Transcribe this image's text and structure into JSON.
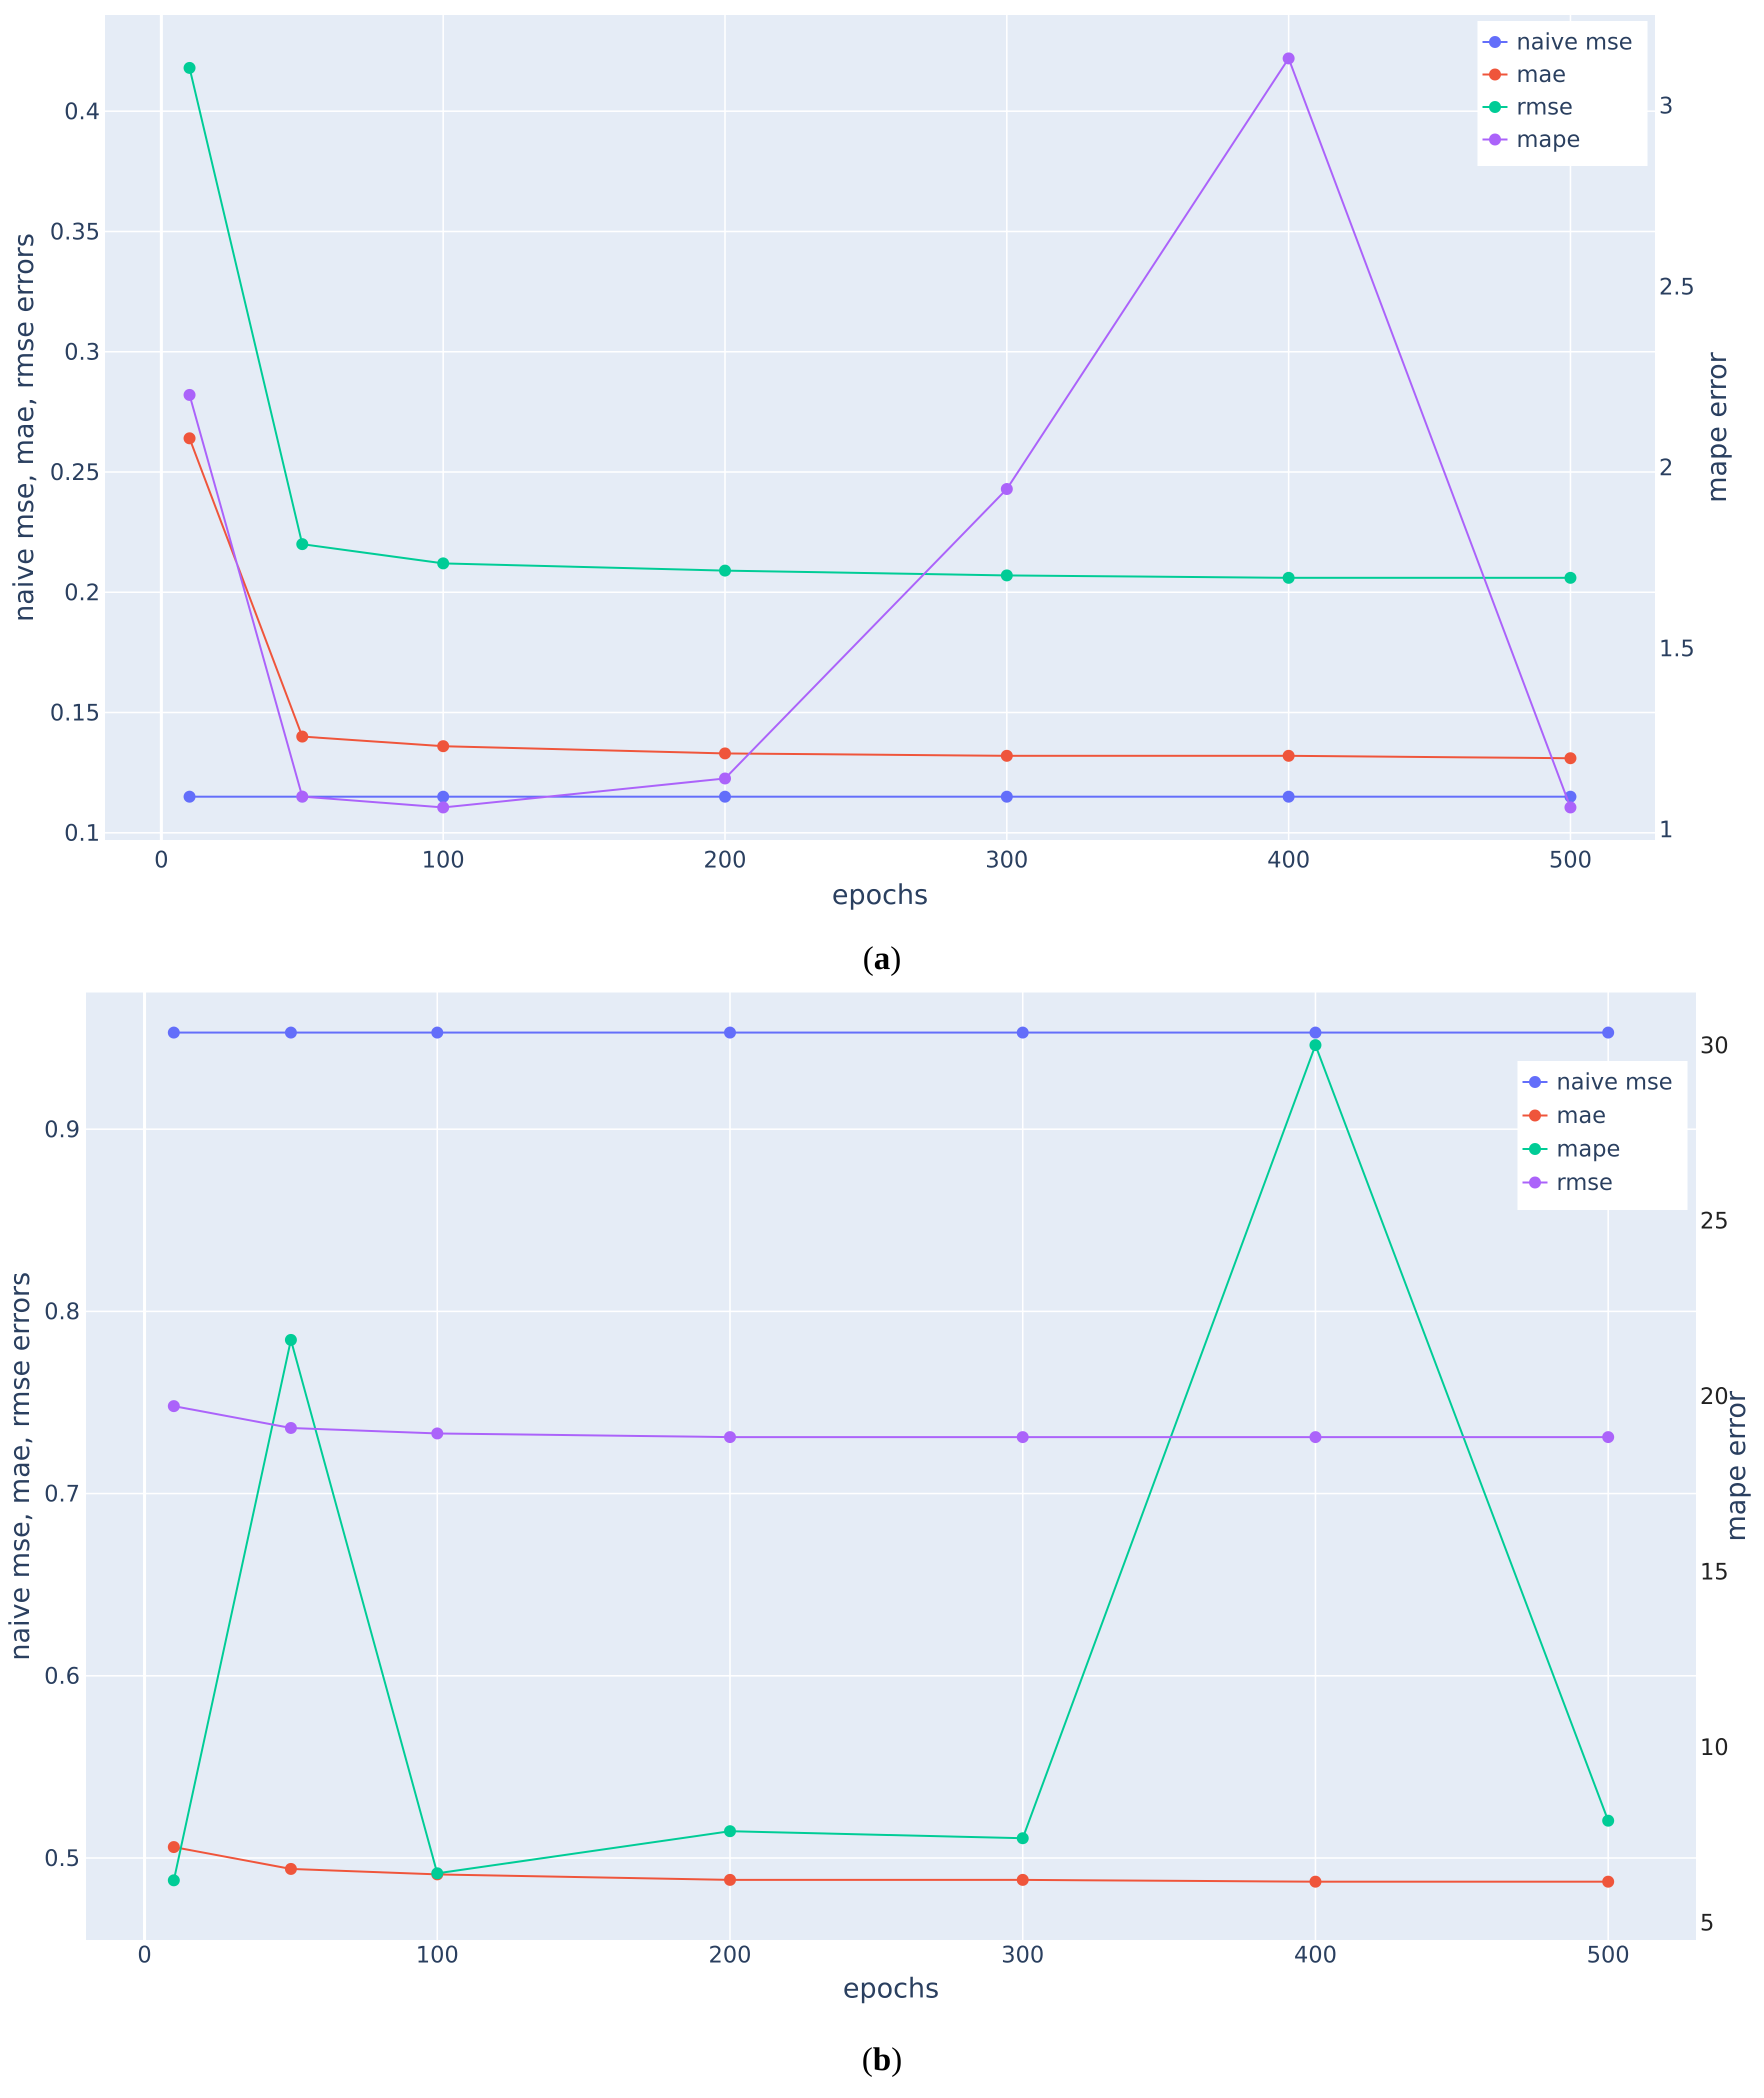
{
  "chart_data": [
    {
      "type": "line",
      "panel_label": "a",
      "xlabel": "epochs",
      "ylabel": "naive mse, mae, rmse errors",
      "y2label": "mape error",
      "x": [
        10,
        50,
        100,
        200,
        300,
        400,
        500
      ],
      "xlim": [
        -20,
        530
      ],
      "ylim": [
        0.097,
        0.44
      ],
      "y2lim": [
        0.97,
        3.25
      ],
      "xticks": [
        0,
        100,
        200,
        300,
        400,
        500
      ],
      "yticks": [
        0.1,
        0.15,
        0.2,
        0.25,
        0.3,
        0.35,
        0.4
      ],
      "ytick_labels": [
        "0.1",
        "0.15",
        "0.2",
        "0.25",
        "0.3",
        "0.35",
        "0.4"
      ],
      "y2ticks": [
        1,
        1.5,
        2,
        2.5,
        3
      ],
      "y2tick_labels": [
        "1",
        "1.5",
        "2",
        "2.5",
        "3"
      ],
      "legend_position": "top-right",
      "series": [
        {
          "name": "naive mse",
          "color": "#636efa",
          "axis": "left",
          "values": [
            0.115,
            0.115,
            0.115,
            0.115,
            0.115,
            0.115,
            0.115
          ]
        },
        {
          "name": "mae",
          "color": "#ef553b",
          "axis": "left",
          "values": [
            0.264,
            0.14,
            0.136,
            0.133,
            0.132,
            0.132,
            0.131
          ]
        },
        {
          "name": "rmse",
          "color": "#00cc96",
          "axis": "left",
          "values": [
            0.418,
            0.22,
            0.212,
            0.209,
            0.207,
            0.206,
            0.206
          ]
        },
        {
          "name": "mape",
          "color": "#ab63fa",
          "axis": "right",
          "values": [
            2.2,
            1.09,
            1.06,
            1.14,
            1.94,
            3.13,
            1.06
          ]
        }
      ]
    },
    {
      "type": "line",
      "panel_label": "b",
      "xlabel": "epochs",
      "ylabel": "naive mse, mae, rmse errors",
      "y2label": "mape error",
      "x": [
        10,
        50,
        100,
        200,
        300,
        400,
        500
      ],
      "xlim": [
        -20,
        530
      ],
      "ylim": [
        0.455,
        0.975
      ],
      "y2lim": [
        4.5,
        31.5
      ],
      "xticks": [
        0,
        100,
        200,
        300,
        400,
        500
      ],
      "yticks": [
        0.5,
        0.6,
        0.7,
        0.8,
        0.9
      ],
      "ytick_labels": [
        "0.5",
        "0.6",
        "0.7",
        "0.8",
        "0.9"
      ],
      "y2ticks": [
        5,
        10,
        15,
        20,
        25,
        30
      ],
      "y2tick_labels": [
        "5",
        "10",
        "15",
        "20",
        "25",
        "30"
      ],
      "legend_position": "top-right",
      "series": [
        {
          "name": "naive mse",
          "color": "#636efa",
          "axis": "left",
          "values": [
            0.953,
            0.953,
            0.953,
            0.953,
            0.953,
            0.953,
            0.953
          ]
        },
        {
          "name": "mae",
          "color": "#ef553b",
          "axis": "left",
          "values": [
            0.506,
            0.494,
            0.491,
            0.488,
            0.488,
            0.487,
            0.487
          ]
        },
        {
          "name": "mape",
          "color": "#00cc96",
          "axis": "right",
          "values": [
            6.2,
            21.6,
            6.4,
            7.6,
            7.4,
            30.0,
            7.9
          ]
        },
        {
          "name": "rmse",
          "color": "#ab63fa",
          "axis": "left",
          "values": [
            0.748,
            0.736,
            0.733,
            0.731,
            0.731,
            0.731,
            0.731
          ]
        }
      ]
    }
  ]
}
